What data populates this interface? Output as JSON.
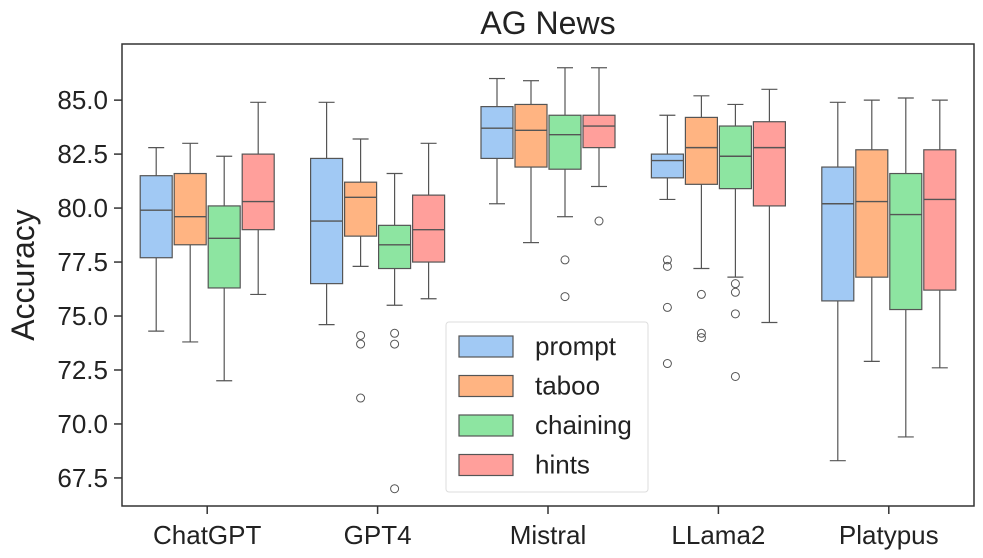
{
  "chart_data": {
    "type": "box",
    "title": "AG News",
    "xlabel": "",
    "ylabel": "Accuracy",
    "ylim": [
      66.2,
      87.6
    ],
    "yticks": [
      67.5,
      70.0,
      72.5,
      75.0,
      77.5,
      80.0,
      82.5,
      85.0
    ],
    "ytick_labels": [
      "67.5",
      "70.0",
      "72.5",
      "75.0",
      "77.5",
      "80.0",
      "82.5",
      "85.0"
    ],
    "grid": false,
    "legend_position": "lower-center",
    "categories": [
      "ChatGPT",
      "GPT4",
      "Mistral",
      "LLama2",
      "Platypus"
    ],
    "series": [
      {
        "name": "prompt",
        "color": "#a1c9f4",
        "boxes": [
          {
            "whisker_low": 74.3,
            "q1": 77.7,
            "median": 79.9,
            "q3": 81.5,
            "whisker_high": 82.8,
            "outliers": []
          },
          {
            "whisker_low": 74.6,
            "q1": 76.5,
            "median": 79.4,
            "q3": 82.3,
            "whisker_high": 84.9,
            "outliers": []
          },
          {
            "whisker_low": 80.2,
            "q1": 82.3,
            "median": 83.7,
            "q3": 84.7,
            "whisker_high": 86.0,
            "outliers": []
          },
          {
            "whisker_low": 80.4,
            "q1": 81.4,
            "median": 82.2,
            "q3": 82.5,
            "whisker_high": 84.3,
            "outliers": [
              77.6,
              77.3,
              75.4,
              72.8
            ]
          },
          {
            "whisker_low": 68.3,
            "q1": 75.7,
            "median": 80.2,
            "q3": 81.9,
            "whisker_high": 84.9,
            "outliers": []
          }
        ]
      },
      {
        "name": "taboo",
        "color": "#ffb482",
        "boxes": [
          {
            "whisker_low": 73.8,
            "q1": 78.3,
            "median": 79.6,
            "q3": 81.6,
            "whisker_high": 83.0,
            "outliers": []
          },
          {
            "whisker_low": 77.3,
            "q1": 78.7,
            "median": 80.5,
            "q3": 81.2,
            "whisker_high": 83.2,
            "outliers": [
              74.1,
              73.7,
              71.2
            ]
          },
          {
            "whisker_low": 78.4,
            "q1": 81.9,
            "median": 83.6,
            "q3": 84.8,
            "whisker_high": 85.9,
            "outliers": []
          },
          {
            "whisker_low": 77.2,
            "q1": 81.1,
            "median": 82.8,
            "q3": 84.2,
            "whisker_high": 85.2,
            "outliers": [
              76.0,
              74.2,
              74.0
            ]
          },
          {
            "whisker_low": 72.9,
            "q1": 76.8,
            "median": 80.3,
            "q3": 82.7,
            "whisker_high": 85.0,
            "outliers": []
          }
        ]
      },
      {
        "name": "chaining",
        "color": "#8de5a1",
        "boxes": [
          {
            "whisker_low": 72.0,
            "q1": 76.3,
            "median": 78.6,
            "q3": 80.1,
            "whisker_high": 82.4,
            "outliers": []
          },
          {
            "whisker_low": 75.5,
            "q1": 77.2,
            "median": 78.3,
            "q3": 79.2,
            "whisker_high": 81.6,
            "outliers": [
              74.2,
              73.7,
              67.0
            ]
          },
          {
            "whisker_low": 79.6,
            "q1": 81.8,
            "median": 83.4,
            "q3": 84.3,
            "whisker_high": 86.5,
            "outliers": [
              77.6,
              75.9
            ]
          },
          {
            "whisker_low": 76.8,
            "q1": 80.9,
            "median": 82.4,
            "q3": 83.8,
            "whisker_high": 84.8,
            "outliers": [
              76.5,
              76.1,
              75.1,
              72.2
            ]
          },
          {
            "whisker_low": 69.4,
            "q1": 75.3,
            "median": 79.7,
            "q3": 81.6,
            "whisker_high": 85.1,
            "outliers": []
          }
        ]
      },
      {
        "name": "hints",
        "color": "#ff9f9b",
        "boxes": [
          {
            "whisker_low": 76.0,
            "q1": 79.0,
            "median": 80.3,
            "q3": 82.5,
            "whisker_high": 84.9,
            "outliers": []
          },
          {
            "whisker_low": 75.8,
            "q1": 77.5,
            "median": 79.0,
            "q3": 80.6,
            "whisker_high": 83.0,
            "outliers": []
          },
          {
            "whisker_low": 81.0,
            "q1": 82.8,
            "median": 83.8,
            "q3": 84.3,
            "whisker_high": 86.5,
            "outliers": [
              79.4
            ]
          },
          {
            "whisker_low": 74.7,
            "q1": 80.1,
            "median": 82.8,
            "q3": 84.0,
            "whisker_high": 85.5,
            "outliers": []
          },
          {
            "whisker_low": 72.6,
            "q1": 76.2,
            "median": 80.4,
            "q3": 82.7,
            "whisker_high": 85.0,
            "outliers": []
          }
        ]
      }
    ]
  }
}
